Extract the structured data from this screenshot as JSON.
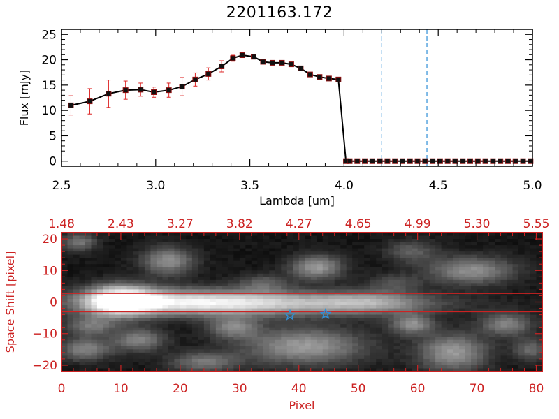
{
  "title": "2201163.172",
  "colors": {
    "axis": "#000000",
    "series": "#000000",
    "marker": "#8b1010",
    "error_bar": "#dd2222",
    "dashed_line": "#2f8fd6",
    "bottom_axis": "#cc2222",
    "band_line": "#cc2222",
    "star": "#2f8fd6"
  },
  "chart_data": [
    {
      "type": "line",
      "title": "2201163.172",
      "xlabel": "Lambda [um]",
      "ylabel": "Flux [mJy]",
      "xlim": [
        2.5,
        5.0
      ],
      "ylim": [
        -1,
        26
      ],
      "xticks": [
        2.5,
        3.0,
        3.5,
        4.0,
        4.5,
        5.0
      ],
      "xtick_labels": [
        "2.5",
        "3.0",
        "3.5",
        "4.0",
        "4.5",
        "5.0"
      ],
      "yticks": [
        0,
        5,
        10,
        15,
        20,
        25
      ],
      "ytick_labels": [
        "0",
        "5",
        "10",
        "15",
        "20",
        "25"
      ],
      "series": [
        {
          "x": [
            2.55,
            2.65,
            2.75,
            2.84,
            2.92,
            2.99,
            3.07,
            3.14,
            3.21,
            3.28,
            3.35,
            3.41,
            3.46,
            3.52,
            3.57,
            3.62,
            3.67,
            3.72,
            3.77,
            3.82,
            3.87,
            3.92,
            3.97,
            4.01,
            4.03,
            4.07,
            4.11,
            4.15,
            4.19,
            4.23,
            4.27,
            4.31,
            4.35,
            4.39,
            4.43,
            4.47,
            4.51,
            4.55,
            4.59,
            4.63,
            4.67,
            4.71,
            4.75,
            4.79,
            4.83,
            4.87,
            4.91,
            4.95,
            4.99
          ],
          "y": [
            11.0,
            11.8,
            13.3,
            14.0,
            14.1,
            13.6,
            14.0,
            14.7,
            16.1,
            17.2,
            18.7,
            20.3,
            20.9,
            20.6,
            19.6,
            19.4,
            19.4,
            19.1,
            18.3,
            17.1,
            16.6,
            16.3,
            16.1,
            0.0,
            0.0,
            0.0,
            0.0,
            0.0,
            0.0,
            0.0,
            0.0,
            0.0,
            0.0,
            0.0,
            0.0,
            0.0,
            0.0,
            0.0,
            0.0,
            0.0,
            0.0,
            0.0,
            0.0,
            0.0,
            0.0,
            0.0,
            0.0,
            0.0,
            0.0
          ],
          "yerr": [
            1.9,
            2.5,
            2.7,
            1.8,
            1.3,
            1.0,
            1.4,
            1.8,
            1.3,
            1.2,
            1.1,
            0.6,
            0.4,
            0.3,
            0.3,
            0.3,
            0.4,
            0.3,
            0.4,
            0.3,
            0.3,
            0.4,
            0.4,
            0,
            0,
            0,
            0,
            0,
            0,
            0,
            0,
            0,
            0,
            0,
            0,
            0,
            0,
            0,
            0,
            0,
            0,
            0,
            0,
            0,
            0,
            0,
            0,
            0,
            0
          ]
        }
      ],
      "vlines": [
        4.2,
        4.44
      ]
    },
    {
      "type": "heatmap",
      "xlabel": "Pixel",
      "ylabel": "Space Shift [pixel]",
      "xlim": [
        0,
        81
      ],
      "ylim": [
        -22,
        22
      ],
      "xticks": [
        0,
        10,
        20,
        30,
        40,
        50,
        60,
        70,
        80
      ],
      "xtick_labels": [
        "0",
        "10",
        "20",
        "30",
        "40",
        "50",
        "60",
        "70",
        "80"
      ],
      "yticks": [
        -20,
        -10,
        0,
        10,
        20
      ],
      "ytick_labels": [
        "−20",
        "−10",
        "0",
        "10",
        "20"
      ],
      "top_ticks": [
        0,
        10,
        20,
        30,
        40,
        50,
        60,
        70,
        80
      ],
      "top_tick_labels": [
        "1.48",
        "2.43",
        "3.27",
        "3.82",
        "4.27",
        "4.65",
        "4.99",
        "5.30",
        "5.55"
      ],
      "band_lines": [
        2.7,
        -3.1
      ],
      "stars": [
        {
          "x": 38.5,
          "y": -4.2
        },
        {
          "x": 44.5,
          "y": -3.8
        }
      ],
      "blobs": [
        {
          "x": 10,
          "y": 0.5,
          "sx": 4,
          "sy": 3.2,
          "v": 1.0
        },
        {
          "x": 20,
          "y": 0,
          "sx": 12,
          "sy": 2.8,
          "v": 0.62
        },
        {
          "x": 38,
          "y": -0.5,
          "sx": 16,
          "sy": 2.6,
          "v": 0.5
        },
        {
          "x": 52,
          "y": 0,
          "sx": 6,
          "sy": 2.4,
          "v": 0.3
        },
        {
          "x": 18,
          "y": 13,
          "sx": 3,
          "sy": 3,
          "v": 0.45
        },
        {
          "x": 43,
          "y": 11,
          "sx": 3,
          "sy": 2.6,
          "v": 0.5
        },
        {
          "x": 59,
          "y": 16,
          "sx": 3,
          "sy": 2.5,
          "v": 0.25
        },
        {
          "x": 69,
          "y": 10,
          "sx": 5,
          "sy": 3,
          "v": 0.45
        },
        {
          "x": 3,
          "y": 19,
          "sx": 2,
          "sy": 2,
          "v": 0.35
        },
        {
          "x": 5,
          "y": -7.5,
          "sx": 3,
          "sy": 2.2,
          "v": 0.35
        },
        {
          "x": 29,
          "y": -8,
          "sx": 3,
          "sy": 2.4,
          "v": 0.4
        },
        {
          "x": 59,
          "y": -7,
          "sx": 2.5,
          "sy": 2.2,
          "v": 0.45
        },
        {
          "x": 75,
          "y": -7,
          "sx": 3,
          "sy": 2.5,
          "v": 0.4
        },
        {
          "x": 4,
          "y": -15,
          "sx": 3,
          "sy": 2.5,
          "v": 0.4
        },
        {
          "x": 13,
          "y": -12,
          "sx": 3,
          "sy": 2.5,
          "v": 0.4
        },
        {
          "x": 24,
          "y": -19,
          "sx": 4,
          "sy": 2.2,
          "v": 0.35
        },
        {
          "x": 41,
          "y": -14,
          "sx": 7,
          "sy": 4,
          "v": 0.5
        },
        {
          "x": 66,
          "y": -16,
          "sx": 4,
          "sy": 4,
          "v": 0.5
        },
        {
          "x": 79,
          "y": -15,
          "sx": 2,
          "sy": 2.5,
          "v": 0.3
        },
        {
          "x": 34,
          "y": 6,
          "sx": 3,
          "sy": 2,
          "v": 0.25
        },
        {
          "x": 56,
          "y": 6,
          "sx": 3,
          "sy": 2,
          "v": 0.2
        }
      ]
    }
  ]
}
